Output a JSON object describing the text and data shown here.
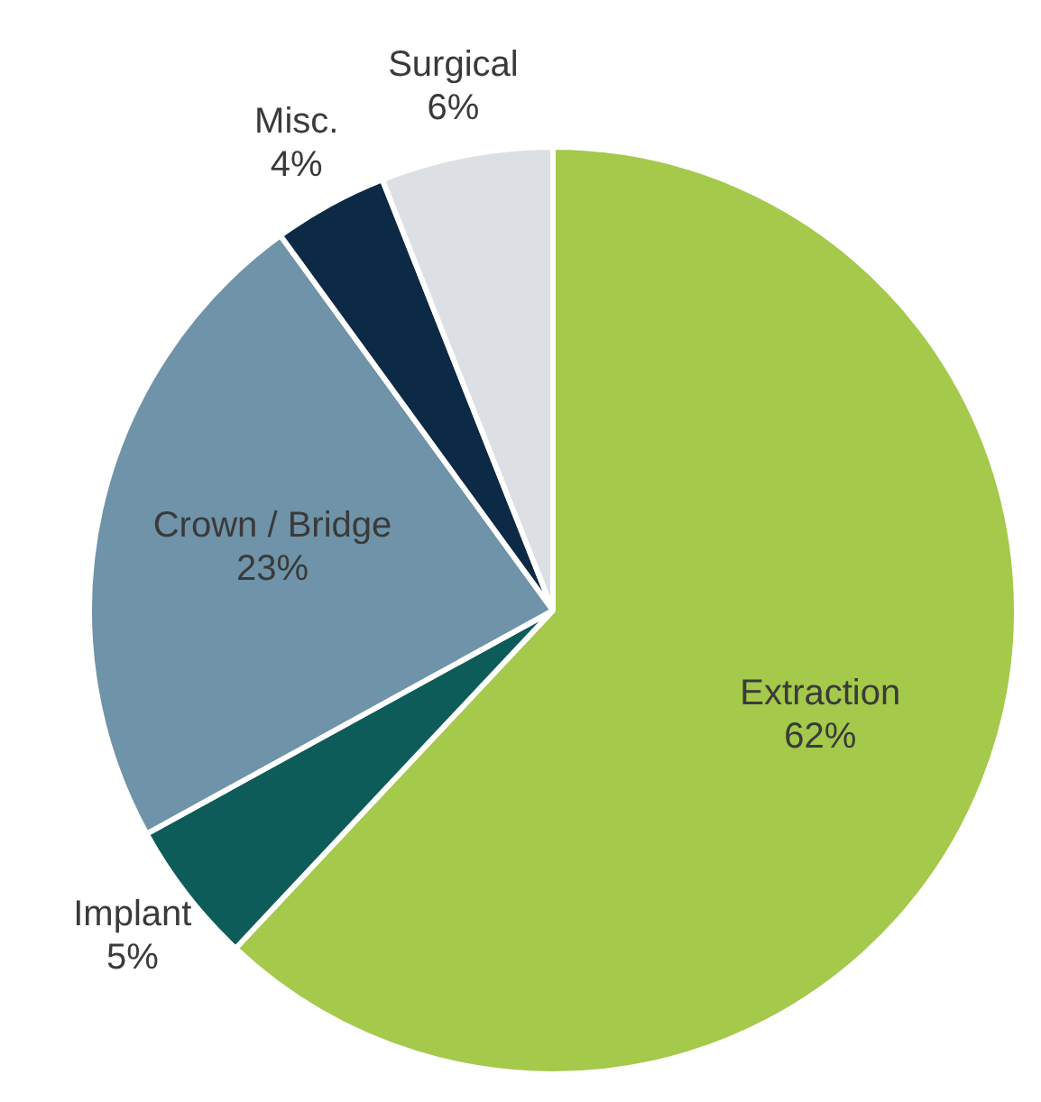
{
  "chart_data": {
    "type": "pie",
    "categories": [
      "Extraction",
      "Implant",
      "Crown / Bridge",
      "Misc.",
      "Surgical"
    ],
    "values": [
      62,
      5,
      23,
      4,
      6
    ],
    "colors": [
      "#a4c94b",
      "#0e5c5a",
      "#6f93a8",
      "#0c2a45",
      "#dce0e5"
    ],
    "value_labels": [
      "62%",
      "5%",
      "23%",
      "4%",
      "6%"
    ],
    "legend": false
  }
}
